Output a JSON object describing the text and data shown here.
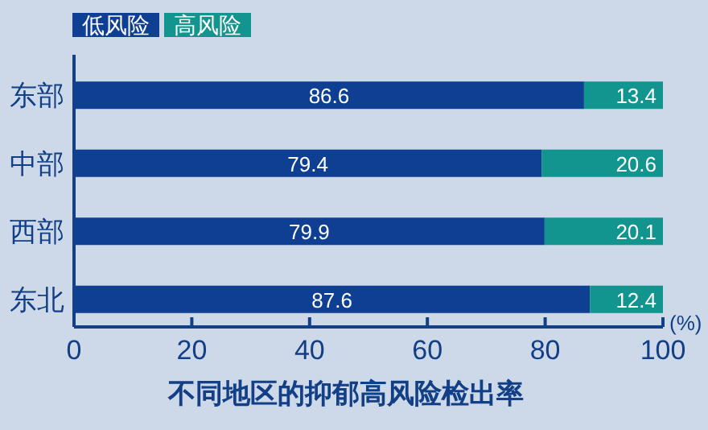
{
  "chart_data": {
    "type": "bar",
    "orientation": "horizontal",
    "stacked": true,
    "title": "不同地区的抑郁高风险检出率",
    "xlabel": "(%)",
    "categories": [
      "东部",
      "中部",
      "西部",
      "东北"
    ],
    "series": [
      {
        "name": "低风险",
        "color": "#0f3f93",
        "values": [
          86.6,
          79.4,
          79.9,
          87.6
        ]
      },
      {
        "name": "高风险",
        "color": "#12948f",
        "values": [
          13.4,
          20.6,
          20.1,
          12.4
        ]
      }
    ],
    "xlim": [
      0,
      100
    ],
    "xticks": [
      0,
      20,
      40,
      60,
      80,
      100
    ],
    "data_labels": true,
    "legend": "top left",
    "grid": false
  }
}
